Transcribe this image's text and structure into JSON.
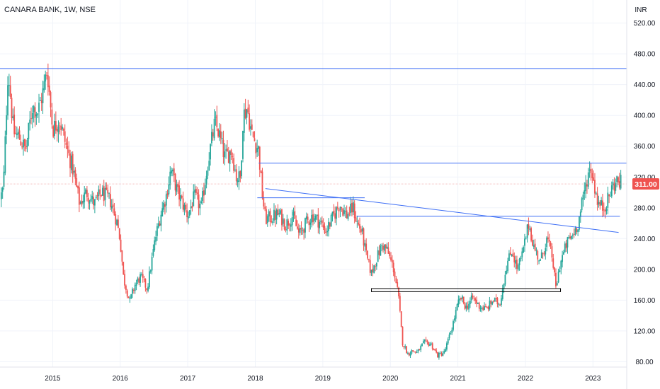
{
  "header": {
    "title": "CANARA BANK, 1W, NSE"
  },
  "chart_data": {
    "type": "candlestick",
    "currency": "INR",
    "y_ticks": [
      "520.00",
      "480.00",
      "440.00",
      "400.00",
      "360.00",
      "320.00",
      "280.00",
      "240.00",
      "200.00",
      "160.00",
      "120.00",
      "80.00"
    ],
    "ylim": [
      73,
      550
    ],
    "x_ticks": [
      "2015",
      "2016",
      "2017",
      "2018",
      "2019",
      "2020",
      "2021",
      "2022",
      "2023"
    ],
    "x_tick_values": [
      2015,
      2016,
      2017,
      2018,
      2019,
      2020,
      2021,
      2022,
      2023
    ],
    "xlim": [
      2014.22,
      2023.5
    ],
    "last_price": 311.0,
    "last_price_label": "311.00",
    "up_color": "#26a69a",
    "down_color": "#ef5350",
    "line_color": "#3d6ef5",
    "support_box_color": "#000000",
    "price_path": [
      [
        2014.22,
        292
      ],
      [
        2014.27,
        305
      ],
      [
        2014.34,
        462
      ],
      [
        2014.42,
        378
      ],
      [
        2014.5,
        372
      ],
      [
        2014.6,
        355
      ],
      [
        2014.7,
        412
      ],
      [
        2014.78,
        405
      ],
      [
        2014.85,
        428
      ],
      [
        2014.92,
        460
      ],
      [
        2015.0,
        382
      ],
      [
        2015.1,
        395
      ],
      [
        2015.2,
        360
      ],
      [
        2015.3,
        330
      ],
      [
        2015.4,
        285
      ],
      [
        2015.5,
        300
      ],
      [
        2015.62,
        285
      ],
      [
        2015.72,
        300
      ],
      [
        2015.85,
        290
      ],
      [
        2015.95,
        262
      ],
      [
        2016.0,
        238
      ],
      [
        2016.05,
        188
      ],
      [
        2016.1,
        172
      ],
      [
        2016.14,
        158
      ],
      [
        2016.22,
        180
      ],
      [
        2016.3,
        190
      ],
      [
        2016.4,
        175
      ],
      [
        2016.52,
        240
      ],
      [
        2016.6,
        272
      ],
      [
        2016.68,
        295
      ],
      [
        2016.75,
        330
      ],
      [
        2016.85,
        300
      ],
      [
        2016.95,
        280
      ],
      [
        2017.0,
        270
      ],
      [
        2017.1,
        295
      ],
      [
        2017.2,
        280
      ],
      [
        2017.3,
        340
      ],
      [
        2017.4,
        390
      ],
      [
        2017.45,
        380
      ],
      [
        2017.55,
        345
      ],
      [
        2017.65,
        355
      ],
      [
        2017.72,
        320
      ],
      [
        2017.78,
        318
      ],
      [
        2017.82,
        400
      ],
      [
        2017.88,
        410
      ],
      [
        2017.95,
        375
      ],
      [
        2018.05,
        355
      ],
      [
        2018.1,
        300
      ],
      [
        2018.15,
        265
      ],
      [
        2018.25,
        268
      ],
      [
        2018.35,
        272
      ],
      [
        2018.45,
        258
      ],
      [
        2018.55,
        270
      ],
      [
        2018.65,
        245
      ],
      [
        2018.75,
        260
      ],
      [
        2018.85,
        270
      ],
      [
        2018.95,
        262
      ],
      [
        2019.05,
        250
      ],
      [
        2019.15,
        268
      ],
      [
        2019.25,
        285
      ],
      [
        2019.35,
        270
      ],
      [
        2019.45,
        280
      ],
      [
        2019.5,
        262
      ],
      [
        2019.58,
        248
      ],
      [
        2019.65,
        215
      ],
      [
        2019.72,
        195
      ],
      [
        2019.8,
        215
      ],
      [
        2019.88,
        232
      ],
      [
        2019.95,
        225
      ],
      [
        2020.05,
        200
      ],
      [
        2020.12,
        165
      ],
      [
        2020.18,
        105
      ],
      [
        2020.26,
        90
      ],
      [
        2020.32,
        94
      ],
      [
        2020.4,
        92
      ],
      [
        2020.5,
        105
      ],
      [
        2020.6,
        103
      ],
      [
        2020.7,
        88
      ],
      [
        2020.8,
        92
      ],
      [
        2020.9,
        120
      ],
      [
        2021.0,
        155
      ],
      [
        2021.05,
        163
      ],
      [
        2021.12,
        150
      ],
      [
        2021.22,
        163
      ],
      [
        2021.32,
        152
      ],
      [
        2021.42,
        148
      ],
      [
        2021.52,
        160
      ],
      [
        2021.62,
        155
      ],
      [
        2021.72,
        205
      ],
      [
        2021.8,
        225
      ],
      [
        2021.88,
        200
      ],
      [
        2021.95,
        218
      ],
      [
        2022.05,
        260
      ],
      [
        2022.12,
        230
      ],
      [
        2022.22,
        210
      ],
      [
        2022.32,
        240
      ],
      [
        2022.4,
        215
      ],
      [
        2022.45,
        175
      ],
      [
        2022.52,
        210
      ],
      [
        2022.62,
        235
      ],
      [
        2022.7,
        245
      ],
      [
        2022.78,
        260
      ],
      [
        2022.85,
        290
      ],
      [
        2022.92,
        322
      ],
      [
        2022.97,
        332
      ],
      [
        2023.02,
        310
      ],
      [
        2023.08,
        285
      ],
      [
        2023.15,
        280
      ],
      [
        2023.22,
        290
      ],
      [
        2023.3,
        310
      ],
      [
        2023.38,
        315
      ],
      [
        2023.43,
        311
      ]
    ],
    "annotations": {
      "hlines": [
        {
          "x1": 2014.22,
          "x2": 2023.5,
          "y": 461
        },
        {
          "x1": 2018.05,
          "x2": 2023.5,
          "y": 338
        },
        {
          "x1": 2018.03,
          "x2": 2019.62,
          "y": 293
        },
        {
          "x1": 2019.5,
          "x2": 2023.4,
          "y": 269
        }
      ],
      "trendlines": [
        {
          "x1": 2018.15,
          "y1": 305,
          "x2": 2023.38,
          "y2": 248
        }
      ],
      "support_box": {
        "x1": 2019.72,
        "x2": 2022.52,
        "y_low": 171,
        "y_high": 175
      }
    }
  }
}
